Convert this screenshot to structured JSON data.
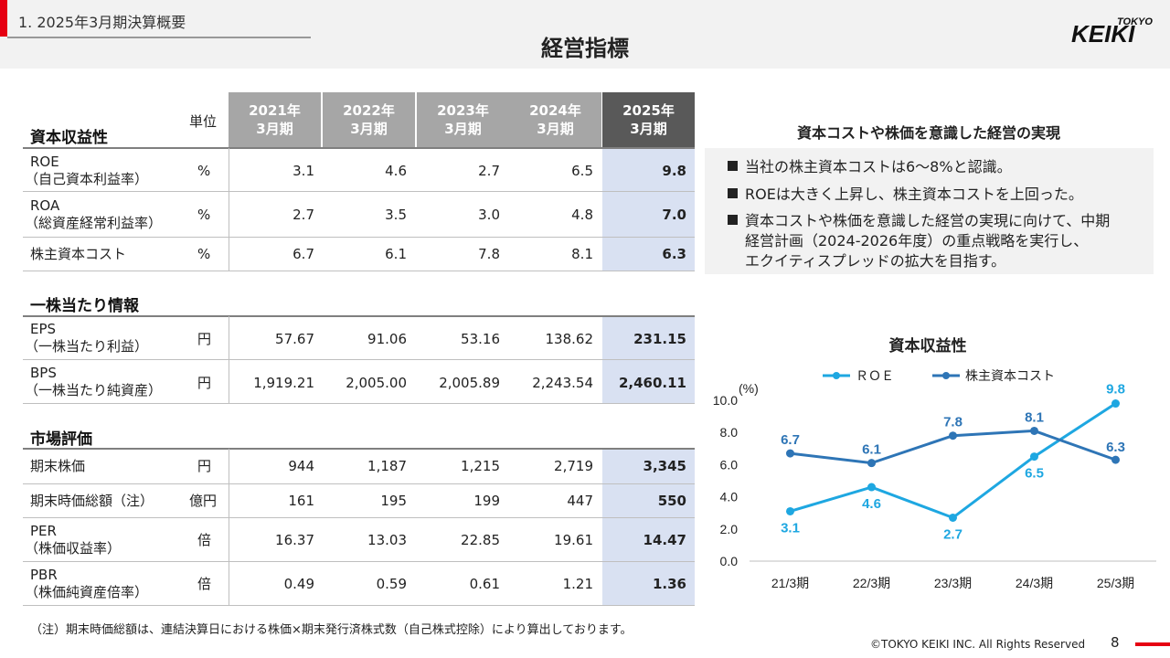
{
  "header": {
    "section": "1.  2025年3月期決算概要",
    "title": "経営指標",
    "logo_small": "TOKYO",
    "logo_main": "KEIKI"
  },
  "table": {
    "unit_header": "単位",
    "years": [
      {
        "l1": "2021年",
        "l2": "3月期"
      },
      {
        "l1": "2022年",
        "l2": "3月期"
      },
      {
        "l1": "2023年",
        "l2": "3月期"
      },
      {
        "l1": "2024年",
        "l2": "3月期"
      },
      {
        "l1": "2025年",
        "l2": "3月期"
      }
    ],
    "groups": [
      {
        "title": "資本収益性",
        "rows": [
          {
            "l1": "ROE",
            "l2": "（自己資本利益率）",
            "unit": "%",
            "values": [
              "3.1",
              "4.6",
              "2.7",
              "6.5",
              "9.8"
            ]
          },
          {
            "l1": "ROA",
            "l2": "（総資産経常利益率）",
            "unit": "%",
            "values": [
              "2.7",
              "3.5",
              "3.0",
              "4.8",
              "7.0"
            ]
          },
          {
            "l1": "株主資本コスト",
            "l2": "",
            "unit": "%",
            "values": [
              "6.7",
              "6.1",
              "7.8",
              "8.1",
              "6.3"
            ]
          }
        ]
      },
      {
        "title": "一株当たり情報",
        "rows": [
          {
            "l1": "EPS",
            "l2": "（一株当たり利益）",
            "unit": "円",
            "values": [
              "57.67",
              "91.06",
              "53.16",
              "138.62",
              "231.15"
            ]
          },
          {
            "l1": "BPS",
            "l2": "（一株当たり純資産）",
            "unit": "円",
            "values": [
              "1,919.21",
              "2,005.00",
              "2,005.89",
              "2,243.54",
              "2,460.11"
            ]
          }
        ]
      },
      {
        "title": "市場評価",
        "rows": [
          {
            "l1": "期末株価",
            "l2": "",
            "unit": "円",
            "values": [
              "944",
              "1,187",
              "1,215",
              "2,719",
              "3,345"
            ]
          },
          {
            "l1": "期末時価総額（注）",
            "l2": "",
            "unit": "億円",
            "values": [
              "161",
              "195",
              "199",
              "447",
              "550"
            ]
          },
          {
            "l1": "PER",
            "l2": "（株価収益率）",
            "unit": "倍",
            "values": [
              "16.37",
              "13.03",
              "22.85",
              "19.61",
              "14.47"
            ]
          },
          {
            "l1": "PBR",
            "l2": "（株価純資産倍率）",
            "unit": "倍",
            "values": [
              "0.49",
              "0.59",
              "0.61",
              "1.21",
              "1.36"
            ]
          }
        ]
      }
    ]
  },
  "policy": {
    "title": "資本コストや株価を意識した経営の実現",
    "bullets": [
      [
        "当社の株主資本コストは6～8%と認識。"
      ],
      [
        "ROEは大きく上昇し、株主資本コストを上回った。"
      ],
      [
        "資本コストや株価を意識した経営の実現に向けて、中期",
        "経営計画（2024-2026年度）の重点戦略を実行し、",
        "エクイティスプレッドの拡大を目指す。"
      ]
    ]
  },
  "chart_data": {
    "type": "line",
    "title": "資本収益性",
    "ylabel": "(%)",
    "categories": [
      "21/3期",
      "22/3期",
      "23/3期",
      "24/3期",
      "25/3期"
    ],
    "ylim": [
      0,
      10
    ],
    "yticks": [
      "0.0",
      "2.0",
      "4.0",
      "6.0",
      "8.0",
      "10.0"
    ],
    "legend_position": "top",
    "grid": false,
    "series": [
      {
        "name": "ＲＯＥ",
        "color": "#1ea7e1",
        "values": [
          3.1,
          4.6,
          2.7,
          6.5,
          9.8
        ],
        "labels": [
          "3.1",
          "4.6",
          "2.7",
          "6.5",
          "9.8"
        ]
      },
      {
        "name": "株主資本コスト",
        "color": "#2e75b6",
        "values": [
          6.7,
          6.1,
          7.8,
          8.1,
          6.3
        ],
        "labels": [
          "6.7",
          "6.1",
          "7.8",
          "8.1",
          "6.3"
        ]
      }
    ]
  },
  "footer": {
    "note": "（注）期末時価総額は、連結決算日における株価×期末発行済株式数（自己株式控除）により算出しております。",
    "copyright": "©TOKYO KEIKI INC. All Rights Reserved",
    "page": "8"
  },
  "colors": {
    "accent_red": "#e60012",
    "highlight_col": "#d9e1f2",
    "header_gray": "#a6a6a6",
    "header_dark": "#595959"
  }
}
